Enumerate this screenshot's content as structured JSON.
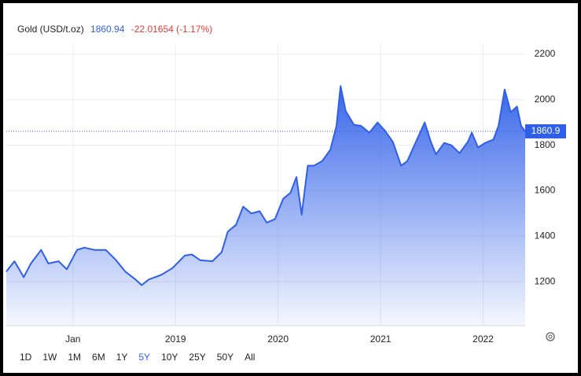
{
  "chart_data": {
    "type": "area",
    "title": "Gold (USD/t.oz)",
    "price": "1860.94",
    "change": "-22.01654 (-1.17%)",
    "x": [
      2017.35,
      2017.43,
      2017.52,
      2017.59,
      2017.69,
      2017.76,
      2017.86,
      2017.94,
      2018.04,
      2018.11,
      2018.21,
      2018.32,
      2018.42,
      2018.51,
      2018.61,
      2018.67,
      2018.74,
      2018.86,
      2018.97,
      2019.09,
      2019.16,
      2019.24,
      2019.36,
      2019.45,
      2019.51,
      2019.59,
      2019.66,
      2019.74,
      2019.82,
      2019.89,
      2019.97,
      2020.05,
      2020.12,
      2020.18,
      2020.23,
      2020.29,
      2020.35,
      2020.43,
      2020.51,
      2020.57,
      2020.61,
      2020.66,
      2020.74,
      2020.81,
      2020.89,
      2020.97,
      2021.04,
      2021.12,
      2021.2,
      2021.26,
      2021.31,
      2021.43,
      2021.49,
      2021.54,
      2021.62,
      2021.69,
      2021.77,
      2021.85,
      2021.89,
      2021.95,
      2022.02,
      2022.1,
      2022.15,
      2022.21,
      2022.27,
      2022.33,
      2022.37,
      2022.41
    ],
    "series": [
      {
        "name": "Gold",
        "color": "#2f5fe8",
        "values": [
          1245,
          1290,
          1220,
          1280,
          1340,
          1280,
          1290,
          1255,
          1340,
          1350,
          1340,
          1340,
          1295,
          1245,
          1210,
          1185,
          1210,
          1230,
          1260,
          1315,
          1320,
          1295,
          1290,
          1330,
          1420,
          1450,
          1530,
          1500,
          1510,
          1460,
          1475,
          1565,
          1590,
          1660,
          1495,
          1710,
          1710,
          1730,
          1780,
          1885,
          2060,
          1950,
          1890,
          1885,
          1855,
          1900,
          1865,
          1815,
          1710,
          1730,
          1780,
          1900,
          1815,
          1760,
          1810,
          1800,
          1765,
          1815,
          1855,
          1790,
          1810,
          1825,
          1885,
          2045,
          1945,
          1970,
          1885,
          1860.94
        ]
      }
    ],
    "xlim": [
      2017.35,
      2022.41
    ],
    "xticks": [
      {
        "value": 2018,
        "label": "Jan"
      },
      2019,
      2020,
      2021,
      2022
    ],
    "ylim": [
      1007,
      2248
    ],
    "yticks": [
      1200,
      1400,
      1600,
      1800,
      2000,
      2200
    ],
    "grid": true,
    "last_value": {
      "value": 1860.94,
      "label": "1860.9"
    },
    "range_buttons": [
      "1D",
      "1W",
      "1M",
      "6M",
      "1Y",
      "5Y",
      "10Y",
      "25Y",
      "50Y",
      "All"
    ],
    "active_range": "5Y"
  }
}
